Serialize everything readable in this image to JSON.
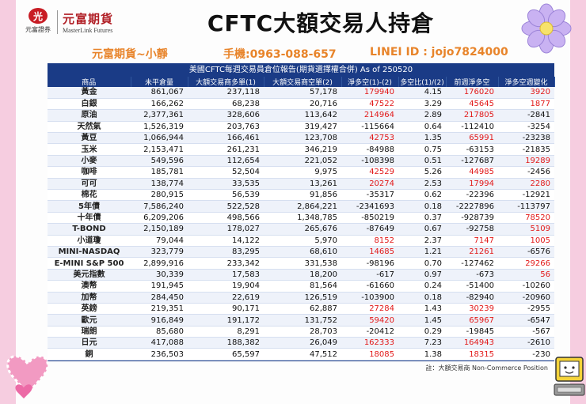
{
  "logo": {
    "mark": "光",
    "sub": "元富證券",
    "name_cn": "元富期貨",
    "name_en": "MasterLink Futures"
  },
  "title": "CFTC大額交易人持倉",
  "contact": {
    "broker": "元富期貨~小靜",
    "phone": "手機:0963-088-657",
    "line": "LINEI ID : jojo7824000"
  },
  "table": {
    "caption": "美國CFTC每週交易員倉位報告(期貨選擇權合併) As of  250520",
    "headers": [
      "商品",
      "未平倉量",
      "大額交易商多單(1)",
      "大額交易商空單(2)",
      "淨多空(1)-(2)",
      "多空比(1)/(2)",
      "前週淨多空",
      "淨多空週變化"
    ],
    "rows": [
      [
        "黃金",
        "861,067",
        "237,118",
        "57,178",
        "179940",
        "4.15",
        "176020",
        "3920"
      ],
      [
        "白銀",
        "166,262",
        "68,238",
        "20,716",
        "47522",
        "3.29",
        "45645",
        "1877"
      ],
      [
        "原油",
        "2,377,361",
        "328,606",
        "113,642",
        "214964",
        "2.89",
        "217805",
        "-2841"
      ],
      [
        "天然氣",
        "1,526,319",
        "203,763",
        "319,427",
        "-115664",
        "0.64",
        "-112410",
        "-3254"
      ],
      [
        "黃豆",
        "1,066,944",
        "166,461",
        "123,708",
        "42753",
        "1.35",
        "65991",
        "-23238"
      ],
      [
        "玉米",
        "2,153,471",
        "261,231",
        "346,219",
        "-84988",
        "0.75",
        "-63153",
        "-21835"
      ],
      [
        "小麥",
        "549,596",
        "112,654",
        "221,052",
        "-108398",
        "0.51",
        "-127687",
        "19289"
      ],
      [
        "咖啡",
        "185,781",
        "52,504",
        "9,975",
        "42529",
        "5.26",
        "44985",
        "-2456"
      ],
      [
        "可可",
        "138,774",
        "33,535",
        "13,261",
        "20274",
        "2.53",
        "17994",
        "2280"
      ],
      [
        "棉花",
        "280,915",
        "56,539",
        "91,856",
        "-35317",
        "0.62",
        "-22396",
        "-12921"
      ],
      [
        "5年債",
        "7,586,240",
        "522,528",
        "2,864,221",
        "-2341693",
        "0.18",
        "-2227896",
        "-113797"
      ],
      [
        "十年債",
        "6,209,206",
        "498,566",
        "1,348,785",
        "-850219",
        "0.37",
        "-928739",
        "78520"
      ],
      [
        "T-BOND",
        "2,150,189",
        "178,027",
        "265,676",
        "-87649",
        "0.67",
        "-92758",
        "5109"
      ],
      [
        "小道瓊",
        "79,044",
        "14,122",
        "5,970",
        "8152",
        "2.37",
        "7147",
        "1005"
      ],
      [
        "MINI-NASDAQ",
        "323,779",
        "83,295",
        "68,610",
        "14685",
        "1.21",
        "21261",
        "-6576"
      ],
      [
        "E-MINI S&P 500",
        "2,899,916",
        "233,342",
        "331,538",
        "-98196",
        "0.70",
        "-127462",
        "29266"
      ],
      [
        "美元指數",
        "30,339",
        "17,583",
        "18,200",
        "-617",
        "0.97",
        "-673",
        "56"
      ],
      [
        "澳幣",
        "191,945",
        "19,904",
        "81,564",
        "-61660",
        "0.24",
        "-51400",
        "-10260"
      ],
      [
        "加幣",
        "284,450",
        "22,619",
        "126,519",
        "-103900",
        "0.18",
        "-82940",
        "-20960"
      ],
      [
        "英鎊",
        "219,351",
        "90,171",
        "62,887",
        "27284",
        "1.43",
        "30239",
        "-2955"
      ],
      [
        "歐元",
        "916,849",
        "191,172",
        "131,752",
        "59420",
        "1.45",
        "65967",
        "-6547"
      ],
      [
        "瑞朗",
        "85,680",
        "8,291",
        "28,703",
        "-20412",
        "0.29",
        "-19845",
        "-567"
      ],
      [
        "日元",
        "417,088",
        "188,382",
        "26,049",
        "162333",
        "7.23",
        "164943",
        "-2610"
      ],
      [
        "銅",
        "236,503",
        "65,597",
        "47,512",
        "18085",
        "1.38",
        "18315",
        "-230"
      ]
    ],
    "note": "註：大額交易商 Non-Commerce Position"
  },
  "colors": {
    "header_bg": "#1a3b86",
    "positive": "#e21818",
    "accent": "#e8842a",
    "page_bg": "#f6cde0"
  },
  "icons": [
    "flower-icon",
    "hearts-icon",
    "computer-icon"
  ]
}
